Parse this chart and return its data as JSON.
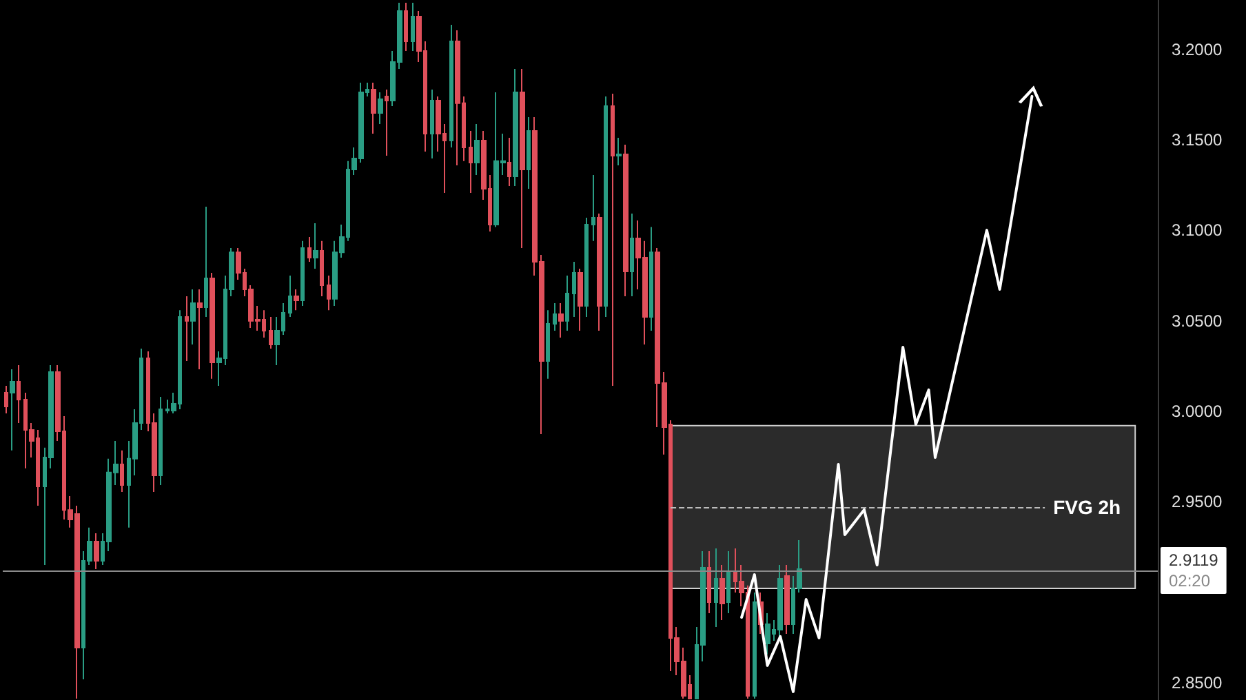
{
  "chart_data": {
    "type": "candlestick",
    "categories": [
      null,
      null,
      null,
      null,
      null,
      null,
      null,
      null,
      null,
      null,
      null,
      null,
      null,
      null,
      null,
      null,
      null,
      null,
      null,
      null,
      null,
      null,
      null,
      null,
      null,
      null,
      null,
      null,
      null,
      null,
      null,
      null,
      null,
      null,
      null,
      null,
      null,
      null,
      null,
      null,
      null,
      null,
      null,
      null,
      null,
      null,
      null,
      null,
      null,
      null,
      null,
      null,
      null,
      null,
      null,
      null,
      null,
      null,
      null,
      null,
      null,
      null,
      null,
      null,
      null,
      null,
      null,
      null,
      null,
      null,
      null,
      null,
      null,
      null,
      null,
      null,
      null,
      null,
      null,
      null,
      null,
      null,
      null,
      null,
      null,
      null,
      null,
      null,
      null,
      null,
      null,
      null,
      null,
      null,
      null,
      null,
      null,
      null,
      null,
      null,
      null,
      null,
      null,
      null,
      null,
      null,
      null,
      null,
      null,
      null,
      null,
      null,
      null,
      null,
      null,
      null,
      null,
      null,
      null,
      null,
      null,
      null,
      null,
      null,
      null,
      null,
      null,
      null,
      null,
      null,
      null,
      null,
      null,
      null,
      null,
      null,
      null,
      null,
      null,
      null,
      null,
      null,
      null,
      null,
      null,
      null,
      null,
      null,
      null,
      null,
      null,
      null,
      null,
      null,
      null,
      null,
      null,
      null,
      null,
      null,
      null,
      null,
      null,
      null,
      null,
      null,
      null,
      null,
      null,
      null,
      null,
      null,
      null,
      null,
      null,
      null,
      null,
      null,
      null
    ],
    "ohlc": [
      [
        3.0102,
        3.014,
        2.9988,
        3.0026
      ],
      [
        3.0102,
        3.0232,
        2.9783,
        3.0163
      ],
      [
        3.0163,
        3.0255,
        2.9935,
        3.0064
      ],
      [
        3.0064,
        3.0102,
        2.9684,
        2.9897
      ],
      [
        2.9897,
        2.9935,
        2.9744,
        2.9836
      ],
      [
        2.9851,
        2.9897,
        2.9477,
        2.9584
      ],
      [
        2.9584,
        2.9798,
        2.915,
        2.9744
      ],
      [
        2.9744,
        3.0255,
        2.9684,
        3.0217
      ],
      [
        3.0217,
        3.0255,
        2.9836,
        2.9889
      ],
      [
        2.9889,
        2.9973,
        2.9401,
        2.9454
      ],
      [
        2.9454,
        2.9531,
        2.9356,
        2.9401
      ],
      [
        2.9432,
        2.9477,
        2.8411,
        2.8693
      ],
      [
        2.8693,
        2.9226,
        2.8517,
        2.9173
      ],
      [
        2.9173,
        2.9356,
        2.915,
        2.9279
      ],
      [
        2.9279,
        2.9325,
        2.9127,
        2.9173
      ],
      [
        2.9173,
        2.9325,
        2.915,
        2.9279
      ],
      [
        2.9279,
        2.9737,
        2.9226,
        2.9661
      ],
      [
        2.9661,
        2.9836,
        2.9592,
        2.9706
      ],
      [
        2.9706,
        2.9783,
        2.9554,
        2.9592
      ],
      [
        2.9592,
        2.9836,
        2.9356,
        2.9737
      ],
      [
        2.9737,
        3.0011,
        2.9645,
        2.9935
      ],
      [
        2.9935,
        3.0346,
        2.9897,
        3.0293
      ],
      [
        3.0293,
        3.0331,
        2.9889,
        2.9935
      ],
      [
        2.9935,
        2.9988,
        2.9554,
        2.9645
      ],
      [
        2.9645,
        3.0079,
        2.9592,
        3.0011
      ],
      [
        3.0003,
        3.0064,
        2.9988,
        3.0011
      ],
      [
        3.0003,
        3.0102,
        2.9988,
        3.0041
      ],
      [
        3.0041,
        3.0559,
        3.0011,
        3.0521
      ],
      [
        3.0521,
        3.0636,
        3.0278,
        3.0499
      ],
      [
        3.0499,
        3.0674,
        3.0369,
        3.0598
      ],
      [
        3.0598,
        3.0674,
        3.0232,
        3.0575
      ],
      [
        3.0575,
        3.1131,
        3.0521,
        3.0735
      ],
      [
        3.0735,
        3.0765,
        3.0179,
        3.027
      ],
      [
        3.027,
        3.0331,
        3.014,
        3.0293
      ],
      [
        3.0293,
        3.075,
        3.0255,
        3.0674
      ],
      [
        3.0674,
        3.0902,
        3.0636,
        3.0879
      ],
      [
        3.0879,
        3.0902,
        3.0727,
        3.0765
      ],
      [
        3.0765,
        3.0788,
        3.0636,
        3.0674
      ],
      [
        3.0674,
        3.0697,
        3.046,
        3.0499
      ],
      [
        3.0506,
        3.0582,
        3.0445,
        3.0499
      ],
      [
        3.0506,
        3.0559,
        3.0407,
        3.0445
      ],
      [
        3.0445,
        3.0521,
        3.0346,
        3.0369
      ],
      [
        3.0369,
        3.0521,
        3.0255,
        3.0445
      ],
      [
        3.0445,
        3.0598,
        3.0422,
        3.0544
      ],
      [
        3.0544,
        3.075,
        3.0521,
        3.0636
      ],
      [
        3.0636,
        3.0674,
        3.0559,
        3.0613
      ],
      [
        3.0613,
        3.0941,
        3.0582,
        3.0902
      ],
      [
        3.0902,
        3.0963,
        3.0826,
        3.0849
      ],
      [
        3.0849,
        3.104,
        3.0788,
        3.0887
      ],
      [
        3.0887,
        3.0941,
        3.0636,
        3.0697
      ],
      [
        3.0697,
        3.075,
        3.0559,
        3.0621
      ],
      [
        3.0621,
        3.0941,
        3.0582,
        3.0879
      ],
      [
        3.0879,
        3.1032,
        3.0849,
        3.0963
      ],
      [
        3.0963,
        3.1383,
        3.0941,
        3.1337
      ],
      [
        3.1337,
        3.1459,
        3.1306,
        3.1398
      ],
      [
        3.1398,
        3.1817,
        3.1375,
        3.1763
      ],
      [
        3.1763,
        3.1817,
        3.1741,
        3.1779
      ],
      [
        3.1779,
        3.1817,
        3.1535,
        3.1649
      ],
      [
        3.1649,
        3.1763,
        3.1588,
        3.1725
      ],
      [
        3.1741,
        3.1779,
        3.1413,
        3.1718
      ],
      [
        3.1718,
        3.1992,
        3.1687,
        3.1931
      ],
      [
        3.1931,
        3.2259,
        3.1893,
        3.2213
      ],
      [
        3.2213,
        3.2259,
        3.1992,
        3.2045
      ],
      [
        3.2045,
        3.2259,
        3.1992,
        3.2183
      ],
      [
        3.2183,
        3.2213,
        3.1931,
        3.1992
      ],
      [
        3.1992,
        3.2045,
        3.1436,
        3.1535
      ],
      [
        3.1535,
        3.1779,
        3.1398,
        3.1718
      ],
      [
        3.1718,
        3.1741,
        3.1436,
        3.1535
      ],
      [
        3.1535,
        3.1588,
        3.1207,
        3.1497
      ],
      [
        3.1497,
        3.2137,
        3.1459,
        3.2045
      ],
      [
        3.2045,
        3.2106,
        3.136,
        3.1703
      ],
      [
        3.1703,
        3.1741,
        3.1383,
        3.1459
      ],
      [
        3.1459,
        3.155,
        3.1207,
        3.1375
      ],
      [
        3.1375,
        3.1588,
        3.1306,
        3.1497
      ],
      [
        3.1497,
        3.155,
        3.1169,
        3.123
      ],
      [
        3.123,
        3.1306,
        3.0994,
        3.1032
      ],
      [
        3.1032,
        3.1763,
        3.1019,
        3.1383
      ],
      [
        3.1375,
        3.1535,
        3.1306,
        3.1383
      ],
      [
        3.1375,
        3.1512,
        3.1245,
        3.1299
      ],
      [
        3.1299,
        3.1893,
        3.1245,
        3.1763
      ],
      [
        3.1763,
        3.1893,
        3.0902,
        3.1337
      ],
      [
        3.1337,
        3.1626,
        3.123,
        3.155
      ],
      [
        3.155,
        3.1626,
        3.075,
        3.0826
      ],
      [
        3.0826,
        3.0864,
        2.9874,
        3.0278
      ],
      [
        3.0278,
        3.0559,
        3.0179,
        3.0483
      ],
      [
        3.0483,
        3.0598,
        3.0445,
        3.0537
      ],
      [
        3.0537,
        3.0598,
        3.0407,
        3.0499
      ],
      [
        3.0499,
        3.075,
        3.0445,
        3.0651
      ],
      [
        3.0651,
        3.0826,
        3.0521,
        3.0765
      ],
      [
        3.0765,
        3.0788,
        3.0445,
        3.0582
      ],
      [
        3.0582,
        3.107,
        3.0521,
        3.1032
      ],
      [
        3.1032,
        3.1306,
        3.0941,
        3.107
      ],
      [
        3.107,
        3.1093,
        3.0445,
        3.0582
      ],
      [
        3.0582,
        3.1741,
        3.0521,
        3.1687
      ],
      [
        3.1687,
        3.1756,
        3.014,
        3.1413
      ],
      [
        3.1413,
        3.1512,
        3.136,
        3.1421
      ],
      [
        3.1421,
        3.1474,
        3.0636,
        3.0773
      ],
      [
        3.0773,
        3.1093,
        3.0636,
        3.0956
      ],
      [
        3.0956,
        3.1055,
        3.0674,
        3.0849
      ],
      [
        3.0849,
        3.0941,
        3.0369,
        3.0521
      ],
      [
        3.0521,
        3.1019,
        3.0445,
        3.0879
      ],
      [
        3.0879,
        3.0902,
        2.9912,
        3.0156
      ],
      [
        3.0156,
        3.0217,
        2.976,
        2.9912
      ],
      [
        2.9927,
        2.995,
        2.8563,
        2.8746
      ],
      [
        2.8746,
        2.8807,
        2.854,
        2.8616
      ],
      [
        2.8616,
        2.8693,
        2.8411,
        2.8426
      ],
      [
        2.8487,
        2.854,
        2.8411,
        2.8411
      ],
      [
        2.8411,
        2.8807,
        2.8411,
        2.8708
      ],
      [
        2.8708,
        2.9226,
        2.8616,
        2.9135
      ],
      [
        2.9135,
        2.9226,
        2.8883,
        2.8944
      ],
      [
        2.8944,
        2.9241,
        2.8807,
        2.9074
      ],
      [
        2.9074,
        2.915,
        2.8845,
        2.8936
      ],
      [
        2.8944,
        2.9226,
        2.8883,
        2.9112
      ],
      [
        2.9112,
        2.9241,
        2.8997,
        2.9058
      ],
      [
        2.9058,
        2.915,
        2.8921,
        2.8997
      ],
      [
        2.8997,
        2.9036,
        2.8411,
        2.8426
      ],
      [
        2.8426,
        2.8997,
        2.8411,
        2.8944
      ],
      [
        2.8944,
        2.8997,
        2.8769,
        2.8822
      ],
      [
        2.8715,
        2.8883,
        2.8655,
        2.8822
      ],
      [
        2.8769,
        2.8845,
        2.8731,
        2.8792
      ],
      [
        2.8792,
        2.915,
        2.8746,
        2.9074
      ],
      [
        2.9089,
        2.915,
        2.8769,
        2.8822
      ],
      [
        2.8822,
        2.9089,
        2.8769,
        2.902
      ],
      [
        2.902,
        2.9287,
        2.8997,
        2.9127
      ],
      null,
      null,
      null,
      null,
      null,
      null,
      null,
      null,
      null,
      null,
      null,
      null,
      null,
      null,
      null,
      null,
      null,
      null,
      null,
      null,
      null,
      null,
      null,
      null,
      null,
      null,
      null,
      null,
      null,
      null,
      null,
      null,
      null,
      null,
      null,
      null,
      null,
      null,
      null,
      null,
      null,
      null,
      null,
      null,
      null,
      null,
      null,
      null,
      null,
      null,
      null,
      null,
      null,
      null,
      null
    ],
    "colors": [
      "#e0505b",
      "#2a9d84",
      "#e0505b",
      "#e0505b",
      "#e0505b",
      "#e0505b",
      "#2a9d84",
      "#2a9d84",
      "#e0505b",
      "#e0505b",
      "#e0505b",
      "#e0505b",
      "#2a9d84",
      "#2a9d84",
      "#e0505b",
      "#2a9d84",
      "#2a9d84",
      "#2a9d84",
      "#e0505b",
      "#2a9d84",
      "#2a9d84",
      "#2a9d84",
      "#e0505b",
      "#e0505b",
      "#2a9d84",
      "#2a9d84",
      "#2a9d84",
      "#2a9d84",
      "#e0505b",
      "#2a9d84",
      "#e0505b",
      "#2a9d84",
      "#e0505b",
      "#2a9d84",
      "#2a9d84",
      "#2a9d84",
      "#e0505b",
      "#e0505b",
      "#e0505b",
      "#e0505b",
      "#e0505b",
      "#e0505b",
      "#2a9d84",
      "#2a9d84",
      "#2a9d84",
      "#e0505b",
      "#2a9d84",
      "#e0505b",
      "#2a9d84",
      "#e0505b",
      "#e0505b",
      "#2a9d84",
      "#2a9d84",
      "#2a9d84",
      "#2a9d84",
      "#2a9d84",
      "#2a9d84",
      "#e0505b",
      "#2a9d84",
      "#e0505b",
      "#2a9d84",
      "#2a9d84",
      "#e0505b",
      "#2a9d84",
      "#e0505b",
      "#e0505b",
      "#2a9d84",
      "#e0505b",
      "#e0505b",
      "#2a9d84",
      "#e0505b",
      "#e0505b",
      "#e0505b",
      "#2a9d84",
      "#e0505b",
      "#e0505b",
      "#2a9d84",
      "#2a9d84",
      "#e0505b",
      "#2a9d84",
      "#e0505b",
      "#2a9d84",
      "#e0505b",
      "#e0505b",
      "#2a9d84",
      "#2a9d84",
      "#e0505b",
      "#2a9d84",
      "#2a9d84",
      "#e0505b",
      "#2a9d84",
      "#2a9d84",
      "#e0505b",
      "#2a9d84",
      "#e0505b",
      "#2a9d84",
      "#e0505b",
      "#2a9d84",
      "#e0505b",
      "#e0505b",
      "#2a9d84",
      "#e0505b",
      "#e0505b",
      "#e0505b",
      "#e0505b",
      "#e0505b",
      "#e0505b",
      "#2a9d84",
      "#2a9d84",
      "#e0505b",
      "#2a9d84",
      "#e0505b",
      "#2a9d84",
      "#e0505b",
      "#e0505b",
      "#e0505b",
      "#2a9d84",
      "#e0505b",
      "#2a9d84",
      "#2a9d84",
      "#2a9d84",
      "#e0505b",
      "#2a9d84",
      "#2a9d84",
      null,
      null,
      null,
      null,
      null,
      null,
      null,
      null,
      null,
      null,
      null,
      null,
      null,
      null,
      null,
      null,
      null,
      null,
      null,
      null,
      null,
      null,
      null,
      null,
      null,
      null,
      null,
      null,
      null,
      null,
      null,
      null,
      null,
      null,
      null,
      null,
      null,
      null,
      null,
      null,
      null,
      null,
      null,
      null,
      null,
      null,
      null,
      null,
      null,
      null,
      null,
      null,
      null,
      null,
      null
    ],
    "series": [
      {
        "type": "line",
        "color": "#ffffff",
        "values": [
          null,
          null,
          null,
          null,
          null,
          null,
          null,
          null,
          null,
          null,
          null,
          null,
          null,
          null,
          null,
          null,
          null,
          null,
          null,
          null,
          null,
          null,
          null,
          null,
          null,
          null,
          null,
          null,
          null,
          null,
          null,
          null,
          null,
          null,
          null,
          null,
          null,
          null,
          null,
          null,
          null,
          null,
          null,
          null,
          null,
          null,
          null,
          null,
          null,
          null,
          null,
          null,
          null,
          null,
          null,
          null,
          null,
          null,
          null,
          null,
          null,
          null,
          null,
          null,
          null,
          null,
          null,
          null,
          null,
          null,
          null,
          null,
          null,
          null,
          null,
          null,
          null,
          null,
          null,
          null,
          null,
          null,
          null,
          null,
          null,
          null,
          null,
          null,
          null,
          null,
          null,
          null,
          null,
          null,
          null,
          null,
          null,
          null,
          null,
          null,
          null,
          null,
          null,
          null,
          null,
          null,
          null,
          null,
          null,
          null,
          null,
          null,
          null,
          null,
          2.886,
          null,
          2.9096,
          null,
          2.8594,
          null,
          2.8754,
          null,
          2.8449,
          null,
          2.8959,
          null,
          2.8746,
          null,
          null,
          2.9706,
          2.9317,
          null,
          null,
          2.9455,
          null,
          2.915,
          null,
          null,
          null,
          3.0354,
          null,
          2.9927,
          null,
          3.0118,
          2.9744,
          null,
          null,
          null,
          null,
          null,
          null,
          null,
          3.1001,
          null,
          3.0674,
          null,
          null,
          null,
          null,
          3.1741,
          null,
          null,
          null,
          null,
          null,
          null,
          null,
          null,
          null,
          null,
          null,
          null,
          null,
          null,
          null,
          null,
          null,
          null,
          null
        ]
      }
    ],
    "ylim": [
      2.8403,
      3.2274
    ],
    "yticks": [
      {
        "value": 2.85,
        "label": "2.8500"
      },
      {
        "value": 2.95,
        "label": "2.9500"
      },
      {
        "value": 3.0,
        "label": "3.0000"
      },
      {
        "value": 3.05,
        "label": "3.0500"
      },
      {
        "value": 3.1,
        "label": "3.1000"
      },
      {
        "value": 3.15,
        "label": "3.1500"
      },
      {
        "value": 3.2,
        "label": "3.2000"
      }
    ],
    "tick_labels": "y",
    "marker": "none",
    "bands": [
      {
        "axis": "y",
        "from": 2.902,
        "to": 2.992,
        "color": "#2b2b2b"
      }
    ],
    "ref_lines": [
      {
        "axis": "y",
        "value": 2.947,
        "label": "FVG 2h",
        "line_style": "dashed",
        "color": "#bdbdbd"
      },
      {
        "axis": "y",
        "value": 2.9119,
        "label": "2.9119",
        "color": "#8a8a8a"
      }
    ],
    "annotations": [
      "02:20"
    ]
  }
}
